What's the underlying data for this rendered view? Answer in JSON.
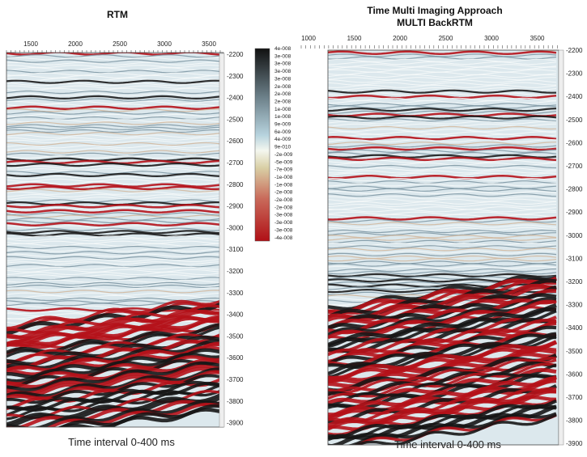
{
  "left": {
    "title": "RTM",
    "xticks": [
      "1500",
      "2000",
      "2500",
      "3000",
      "3500"
    ],
    "yticks": [
      "-2200",
      "-2300",
      "-2400",
      "-2500",
      "-2600",
      "-2700",
      "-2800",
      "-2900",
      "-3000",
      "-3100",
      "-3200",
      "-3300",
      "-3400",
      "-3500",
      "-3600",
      "-3700",
      "-3800",
      "-3900"
    ],
    "caption": "Time interval 0-400 ms"
  },
  "colorbar": {
    "labels": [
      "4e-008",
      "3e-008",
      "3e-008",
      "3e-008",
      "3e-008",
      "2e-008",
      "2e-008",
      "2e-008",
      "1e-008",
      "1e-008",
      "9e-009",
      "6e-009",
      "4e-009",
      "9e-010",
      "-2e-009",
      "-5e-009",
      "-7e-009",
      "-1e-008",
      "-1e-008",
      "-2e-008",
      "-2e-008",
      "-2e-008",
      "-3e-008",
      "-3e-008",
      "-3e-008",
      "-4e-008"
    ]
  },
  "right": {
    "title": [
      "Time Multi Imaging Approach",
      "MULTI BackRTM"
    ],
    "xticks": [
      "1000",
      "1500",
      "2000",
      "2500",
      "3000",
      "3500"
    ],
    "yticks": [
      "-2200",
      "-2300",
      "-2400",
      "-2500",
      "-2600",
      "-2700",
      "-2800",
      "-2900",
      "-3000",
      "-3100",
      "-3200",
      "-3300",
      "-3400",
      "-3500",
      "-3600",
      "-3700",
      "-3800",
      "-3900"
    ],
    "caption": "Time interval 0-400 ms"
  }
}
